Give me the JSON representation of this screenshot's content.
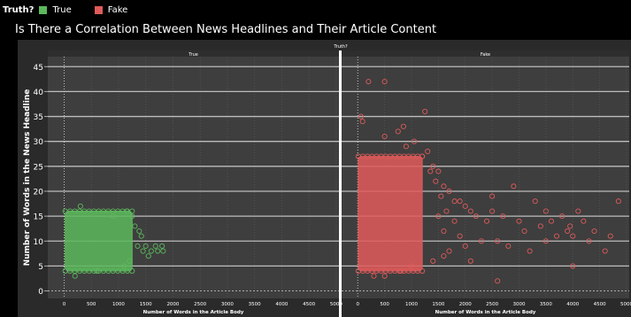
{
  "legend": {
    "title": "Truth?",
    "items": [
      {
        "label": "True",
        "color": "#5cb85c"
      },
      {
        "label": "Fake",
        "color": "#e05a5a"
      }
    ]
  },
  "chart_data": {
    "type": "scatter",
    "title": "Is There a Correlation Between News Headlines and Their Article Content",
    "facet_header": "Truth?",
    "facets": [
      "True",
      "Fake"
    ],
    "xlabel": "Number of Words in the Article Body",
    "ylabel": "Number of Words in the News Headline",
    "xlim": [
      -300,
      5050
    ],
    "ylim": [
      -1.5,
      47
    ],
    "x_ticks": [
      0,
      500,
      1000,
      1500,
      2000,
      2500,
      3000,
      3500,
      4000,
      4500,
      5000
    ],
    "y_ticks": [
      0,
      5,
      10,
      15,
      20,
      25,
      30,
      35,
      40,
      45
    ],
    "grid": true,
    "series": [
      {
        "name": "True",
        "color": "#5cb85c",
        "dense_region": {
          "x": [
            20,
            1250
          ],
          "y": [
            4,
            16
          ]
        },
        "points": [
          [
            1300,
            13
          ],
          [
            1350,
            9
          ],
          [
            1380,
            12
          ],
          [
            1420,
            11
          ],
          [
            1450,
            8
          ],
          [
            1500,
            9
          ],
          [
            1550,
            7
          ],
          [
            1600,
            8
          ],
          [
            1680,
            9
          ],
          [
            1720,
            8
          ],
          [
            1800,
            9
          ],
          [
            1820,
            8
          ],
          [
            1250,
            15
          ],
          [
            1200,
            6
          ],
          [
            1150,
            16
          ],
          [
            900,
            15
          ],
          [
            600,
            4
          ],
          [
            300,
            17
          ],
          [
            200,
            3
          ],
          [
            1100,
            5
          ]
        ]
      },
      {
        "name": "Fake",
        "color": "#e05a5a",
        "dense_region": {
          "x": [
            10,
            1200
          ],
          "y": [
            4,
            27
          ]
        },
        "points": [
          [
            200,
            42
          ],
          [
            500,
            42
          ],
          [
            1250,
            36
          ],
          [
            60,
            35
          ],
          [
            90,
            34
          ],
          [
            850,
            33
          ],
          [
            750,
            32
          ],
          [
            500,
            31
          ],
          [
            1050,
            30
          ],
          [
            900,
            29
          ],
          [
            1300,
            28
          ],
          [
            1200,
            27
          ],
          [
            1400,
            25
          ],
          [
            1350,
            24
          ],
          [
            1500,
            24
          ],
          [
            1450,
            22
          ],
          [
            1600,
            21
          ],
          [
            1700,
            20
          ],
          [
            1800,
            18
          ],
          [
            1900,
            18
          ],
          [
            1550,
            19
          ],
          [
            2000,
            17
          ],
          [
            2100,
            16
          ],
          [
            1650,
            16
          ],
          [
            1500,
            15
          ],
          [
            1800,
            14
          ],
          [
            2200,
            15
          ],
          [
            2400,
            14
          ],
          [
            2500,
            16
          ],
          [
            2700,
            15
          ],
          [
            3000,
            14
          ],
          [
            2900,
            21
          ],
          [
            2500,
            19
          ],
          [
            3300,
            18
          ],
          [
            3100,
            12
          ],
          [
            3400,
            13
          ],
          [
            3500,
            16
          ],
          [
            3600,
            14
          ],
          [
            3700,
            11
          ],
          [
            3800,
            15
          ],
          [
            3900,
            12
          ],
          [
            3950,
            13
          ],
          [
            4000,
            11
          ],
          [
            4100,
            16
          ],
          [
            4200,
            14
          ],
          [
            4300,
            10
          ],
          [
            4400,
            12
          ],
          [
            4600,
            8
          ],
          [
            4700,
            11
          ],
          [
            4850,
            18
          ],
          [
            3500,
            10
          ],
          [
            4000,
            5
          ],
          [
            3200,
            8
          ],
          [
            2800,
            9
          ],
          [
            2600,
            10
          ],
          [
            2300,
            10
          ],
          [
            2000,
            9
          ],
          [
            1700,
            8
          ],
          [
            2600,
            2
          ],
          [
            1600,
            7
          ],
          [
            2100,
            6
          ],
          [
            1900,
            11
          ],
          [
            1600,
            12
          ],
          [
            1400,
            6
          ],
          [
            1000,
            5
          ],
          [
            800,
            4
          ],
          [
            300,
            3
          ],
          [
            500,
            3
          ]
        ]
      }
    ]
  }
}
